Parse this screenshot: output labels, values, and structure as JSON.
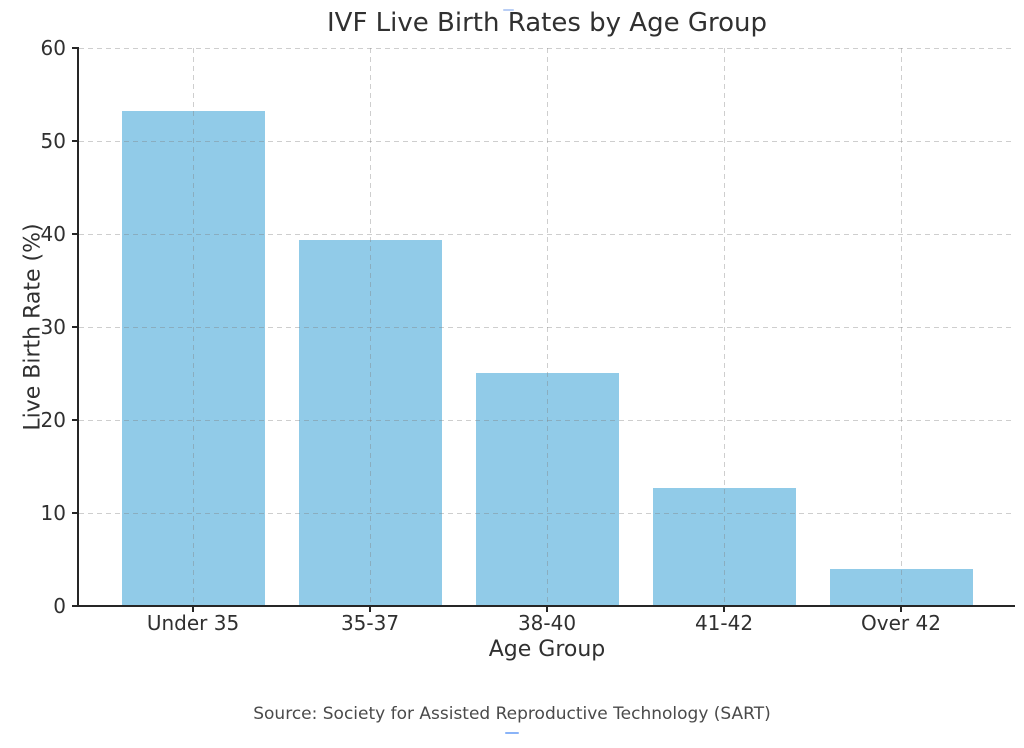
{
  "chart_data": {
    "type": "bar",
    "title": "IVF Live Birth Rates by Age Group",
    "categories": [
      "Under 35",
      "35-37",
      "38-40",
      "41-42",
      "Over 42"
    ],
    "values": [
      53.2,
      39.4,
      25.1,
      12.7,
      4.0
    ],
    "xlabel": "Age Group",
    "ylabel": "Live Birth Rate (%)",
    "ylim": [
      0,
      60
    ],
    "yticks": [
      0,
      10,
      20,
      30,
      40,
      50,
      60
    ],
    "bar_color": "#91CBE8",
    "grid": "dashed, horizontal and vertical, drawn over bars",
    "legend_position": "none"
  },
  "footer": {
    "source_text": "Source: Society for Assisted Reproductive Technology (SART)"
  },
  "artifacts": {
    "top_dash_color": "#b9cef5",
    "bottom_dash_color": "#8ab4f8"
  }
}
